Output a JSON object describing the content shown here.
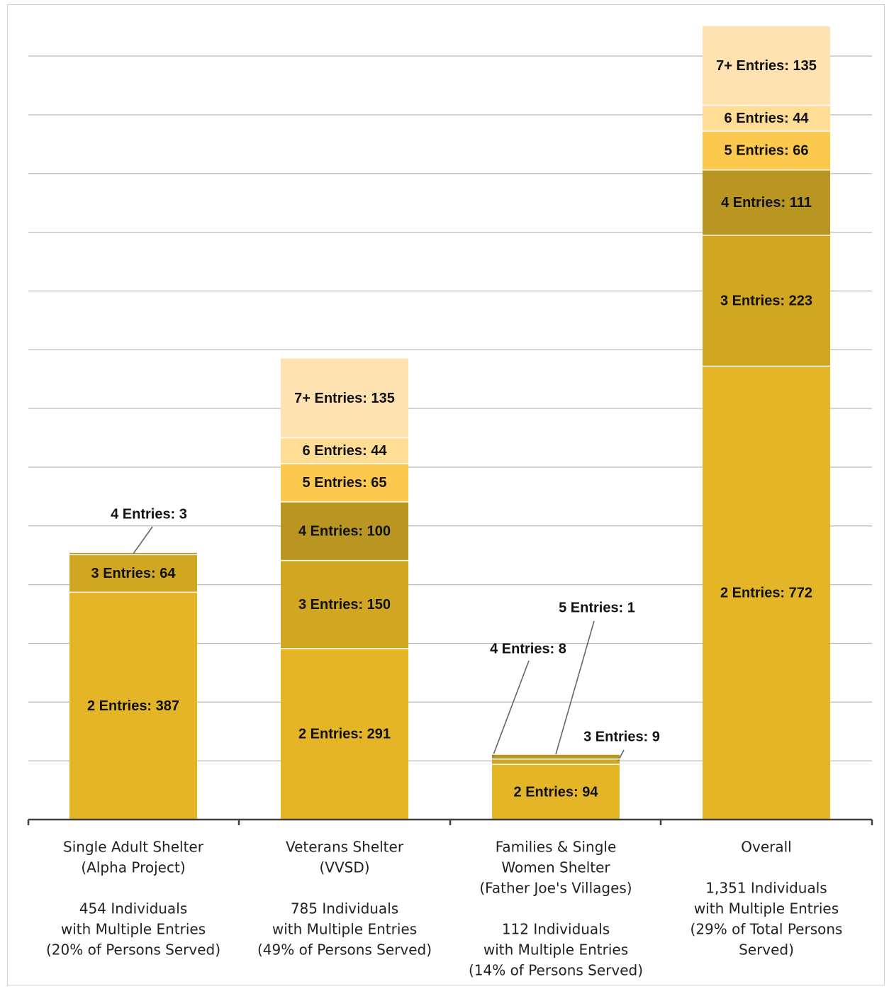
{
  "chart_data": {
    "type": "bar",
    "stacked": true,
    "grid": true,
    "colors": {
      "2 Entries": "#E4B526",
      "3 Entries": "#D1A620",
      "4 Entries": "#B99522",
      "5 Entries": "#FDC84E",
      "6 Entries": "#FFDD94",
      "7+ Entries": "#FFE2B2"
    },
    "categories": [
      {
        "name": "Single Adult Shelter",
        "lines": [
          "Single Adult Shelter",
          "(Alpha Project)",
          "",
          "454 Individuals",
          "with Multiple Entries",
          "(20% of Persons Served)"
        ],
        "segments": [
          {
            "key": "2 Entries",
            "value": 387,
            "label": "2 Entries: 387"
          },
          {
            "key": "3 Entries",
            "value": 64,
            "label": "3 Entries: 64"
          },
          {
            "key": "4 Entries",
            "value": 3,
            "label": "4 Entries: 3",
            "callout": true
          }
        ]
      },
      {
        "name": "Veterans Shelter",
        "lines": [
          "Veterans Shelter",
          "(VVSD)",
          "",
          "785 Individuals",
          "with Multiple Entries",
          "(49% of Persons Served)"
        ],
        "segments": [
          {
            "key": "2 Entries",
            "value": 291,
            "label": "2 Entries: 291"
          },
          {
            "key": "3 Entries",
            "value": 150,
            "label": "3 Entries: 150"
          },
          {
            "key": "4 Entries",
            "value": 100,
            "label": "4 Entries: 100"
          },
          {
            "key": "5 Entries",
            "value": 65,
            "label": "5 Entries: 65"
          },
          {
            "key": "6 Entries",
            "value": 44,
            "label": "6 Entries: 44"
          },
          {
            "key": "7+ Entries",
            "value": 135,
            "label": "7+ Entries: 135"
          }
        ]
      },
      {
        "name": "Families & Single Women Shelter",
        "lines": [
          "Families & Single",
          "Women Shelter",
          "(Father Joe's Villages)",
          "",
          "112 Individuals",
          "with Multiple Entries",
          "(14% of Persons Served)"
        ],
        "segments": [
          {
            "key": "2 Entries",
            "value": 94,
            "label": "2 Entries: 94"
          },
          {
            "key": "3 Entries",
            "value": 9,
            "label": "3 Entries: 9",
            "callout": true
          },
          {
            "key": "4 Entries",
            "value": 8,
            "label": "4 Entries: 8",
            "callout": true
          },
          {
            "key": "5 Entries",
            "value": 1,
            "label": "5 Entries: 1",
            "callout": true
          }
        ]
      },
      {
        "name": "Overall",
        "lines": [
          "Overall",
          "",
          "1,351 Individuals",
          "with Multiple Entries",
          "(29% of Total Persons",
          "Served)"
        ],
        "segments": [
          {
            "key": "2 Entries",
            "value": 772,
            "label": "2 Entries: 772"
          },
          {
            "key": "3 Entries",
            "value": 223,
            "label": "3 Entries: 223"
          },
          {
            "key": "4 Entries",
            "value": 111,
            "label": "4 Entries: 111"
          },
          {
            "key": "5 Entries",
            "value": 66,
            "label": "5 Entries: 66"
          },
          {
            "key": "6 Entries",
            "value": 44,
            "label": "6 Entries: 44"
          },
          {
            "key": "7+ Entries",
            "value": 135,
            "label": "7+ Entries: 135"
          }
        ]
      }
    ],
    "ylim": [
      0,
      1400
    ],
    "ytick_step": 100,
    "title": "",
    "xlabel": "",
    "ylabel": ""
  }
}
